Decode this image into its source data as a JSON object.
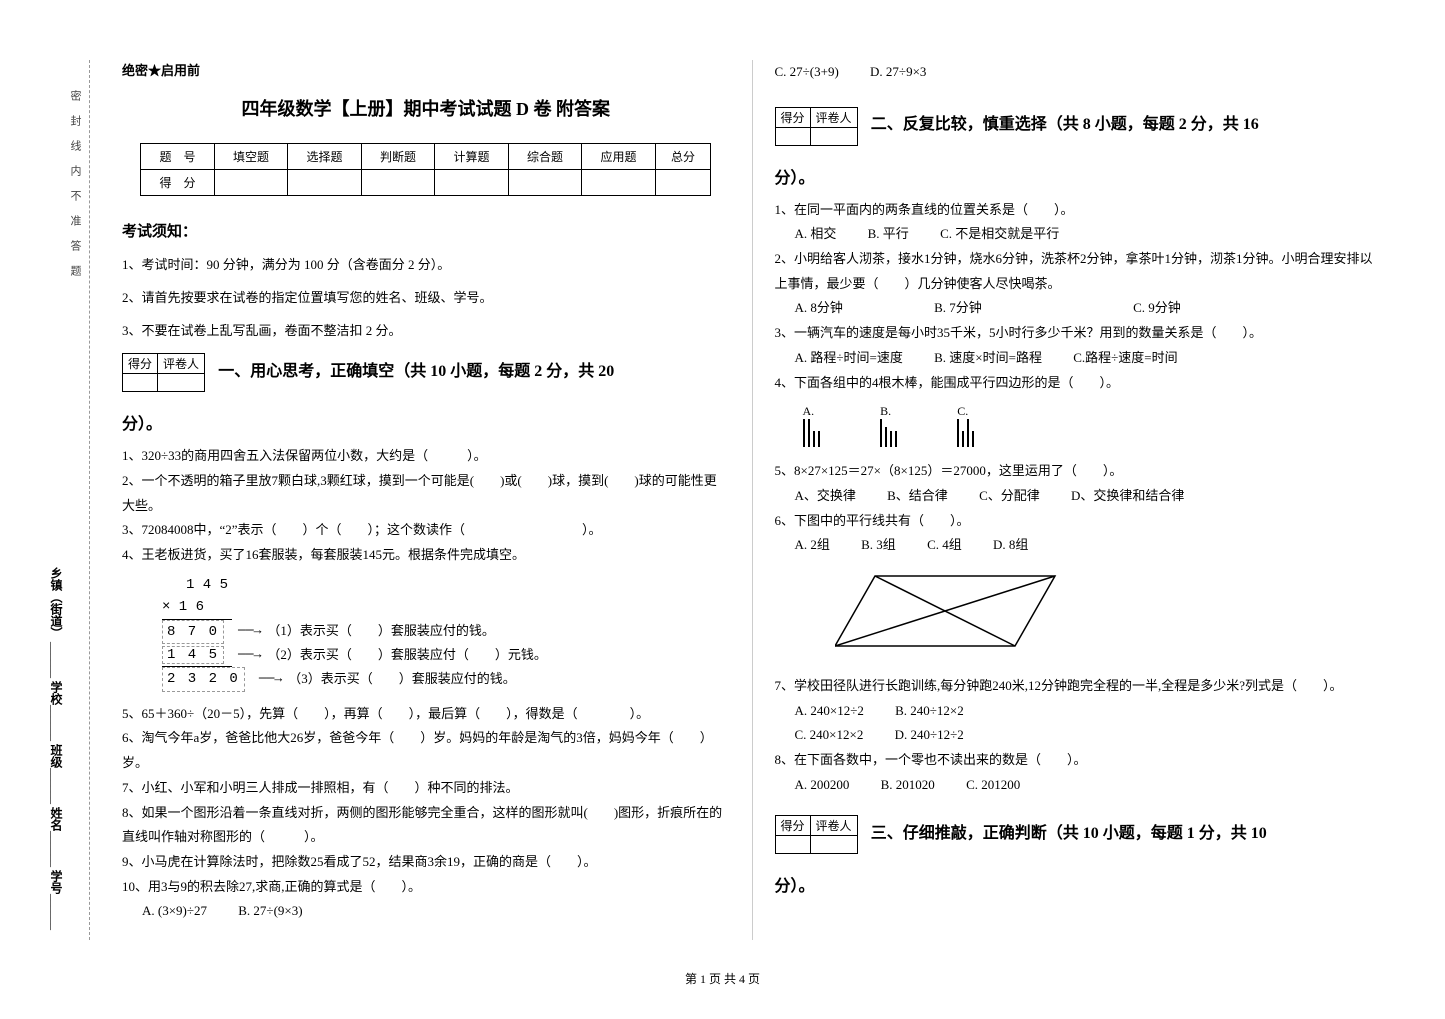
{
  "binding": {
    "fields": [
      "乡镇（街道）",
      "学校",
      "班级",
      "姓名",
      "学号"
    ],
    "dashes": [
      "密",
      "封",
      "线",
      "内",
      "不",
      "准",
      "答",
      "题"
    ]
  },
  "secret": "绝密★启用前",
  "title": "四年级数学【上册】期中考试试题 D 卷  附答案",
  "score_table": {
    "headers": [
      "题　号",
      "填空题",
      "选择题",
      "判断题",
      "计算题",
      "综合题",
      "应用题",
      "总分"
    ],
    "row_label": "得　分"
  },
  "notice": {
    "title": "考试须知：",
    "items": [
      "1、考试时间：90 分钟，满分为 100 分（含卷面分 2 分）。",
      "2、请首先按要求在试卷的指定位置填写您的姓名、班级、学号。",
      "3、不要在试卷上乱写乱画，卷面不整洁扣 2 分。"
    ]
  },
  "scorebox": {
    "c1": "得分",
    "c2": "评卷人"
  },
  "sections": {
    "s1": "一、用心思考，正确填空（共 10 小题，每题 2 分，共 20",
    "s2": "二、反复比较，慎重选择（共 8 小题，每题 2 分，共 16",
    "s3": "三、仔细推敲，正确判断（共 10 小题，每题 1 分，共 10",
    "fen": "分）。"
  },
  "part1": {
    "q1": "1、320÷33的商用四舍五入法保留两位小数，大约是（　　　）。",
    "q2": "2、一个不透明的箱子里放7颗白球,3颗红球，摸到一个可能是(　　)或(　　)球，摸到(　　)球的可能性更大些。",
    "q3": "3、72084008中，“2”表示（　　）个（　　）；这个数读作（　　　　　　　　　）。",
    "q4": "4、王老板进货，买了16套服装，每套服装145元。根据条件完成填空。",
    "calc": {
      "n1": "1 4 5",
      "times": "×   1 6",
      "r1box": "8 7 0",
      "r1note": "（1）表示买（　　）套服装应付的钱。",
      "r2box": "1 4 5",
      "r2note": "（2）表示买（　　）套服装应付（　　）元钱。",
      "r3box": "2 3 2 0",
      "r3note": "（3）表示买（　　）套服装应付的钱。"
    },
    "q5": "5、65＋360÷（20－5），先算（　　），再算（　　），最后算（　　），得数是（　　　　）。",
    "q6": "6、淘气今年a岁，爸爸比他大26岁，爸爸今年（　　）岁。妈妈的年龄是淘气的3倍，妈妈今年（　　）岁。",
    "q7": "7、小红、小军和小明三人排成一排照相，有（　　）种不同的排法。",
    "q8": "8、如果一个图形沿着一条直线对折，两侧的图形能够完全重合，这样的图形就叫(　　)图形，折痕所在的直线叫作轴对称图形的（　　　）。",
    "q9": "9、小马虎在计算除法时，把除数25看成了52，结果商3余19，正确的商是（　　）。",
    "q10": "10、用3与9的积去除27,求商,正确的算式是（　　）。",
    "q10opts": {
      "a": "A. (3×9)÷27",
      "b": "B. 27÷(9×3)",
      "c": "C. 27÷(3+9)",
      "d": "D. 27÷9×3"
    }
  },
  "part2": {
    "q1": "1、在同一平面内的两条直线的位置关系是（　　）。",
    "q1opts": {
      "a": "A. 相交",
      "b": "B. 平行",
      "c": "C. 不是相交就是平行"
    },
    "q2": "2、小明给客人沏茶，接水1分钟，烧水6分钟，洗茶杯2分钟，拿茶叶1分钟，沏茶1分钟。小明合理安排以上事情，最少要（　　）几分钟使客人尽快喝茶。",
    "q2opts": {
      "a": "A. 8分钟",
      "b": "B. 7分钟",
      "c": "C. 9分钟"
    },
    "q3": "3、一辆汽车的速度是每小时35千米，5小时行多少千米？用到的数量关系是（　　）。",
    "q3opts": {
      "a": "A. 路程÷时间=速度",
      "b": "B. 速度×时间=路程",
      "c": "C.路程÷速度=时间"
    },
    "q4": "4、下面各组中的4根木棒，能围成平行四边形的是（　　）。",
    "q4bars": {
      "A": [
        28,
        28,
        16,
        16
      ],
      "B": [
        28,
        20,
        16,
        16
      ],
      "C": [
        28,
        16,
        28,
        16
      ]
    },
    "q5": "5、8×27×125＝27×（8×125）＝27000，这里运用了（　　）。",
    "q5opts": {
      "a": "A、交换律",
      "b": "B、结合律",
      "c": "C、分配律",
      "d": "D、交换律和结合律"
    },
    "q6": "6、下图中的平行线共有（　　）。",
    "q6opts": {
      "a": "A. 2组",
      "b": "B. 3组",
      "c": "C. 4组",
      "d": "D. 8组"
    },
    "q7": "7、学校田径队进行长跑训练,每分钟跑240米,12分钟跑完全程的一半,全程是多少米?列式是（　　）。",
    "q7opts": {
      "a": "A. 240×12÷2",
      "b": "B. 240÷12×2",
      "c": "C. 240×12×2",
      "d": "D. 240÷12÷2"
    },
    "q8": "8、在下面各数中，一个零也不读出来的数是（　　）。",
    "q8opts": {
      "a": "A.  200200",
      "b": "B.  201020",
      "c": "C.  201200"
    }
  },
  "footer": "第 1 页 共 4 页"
}
